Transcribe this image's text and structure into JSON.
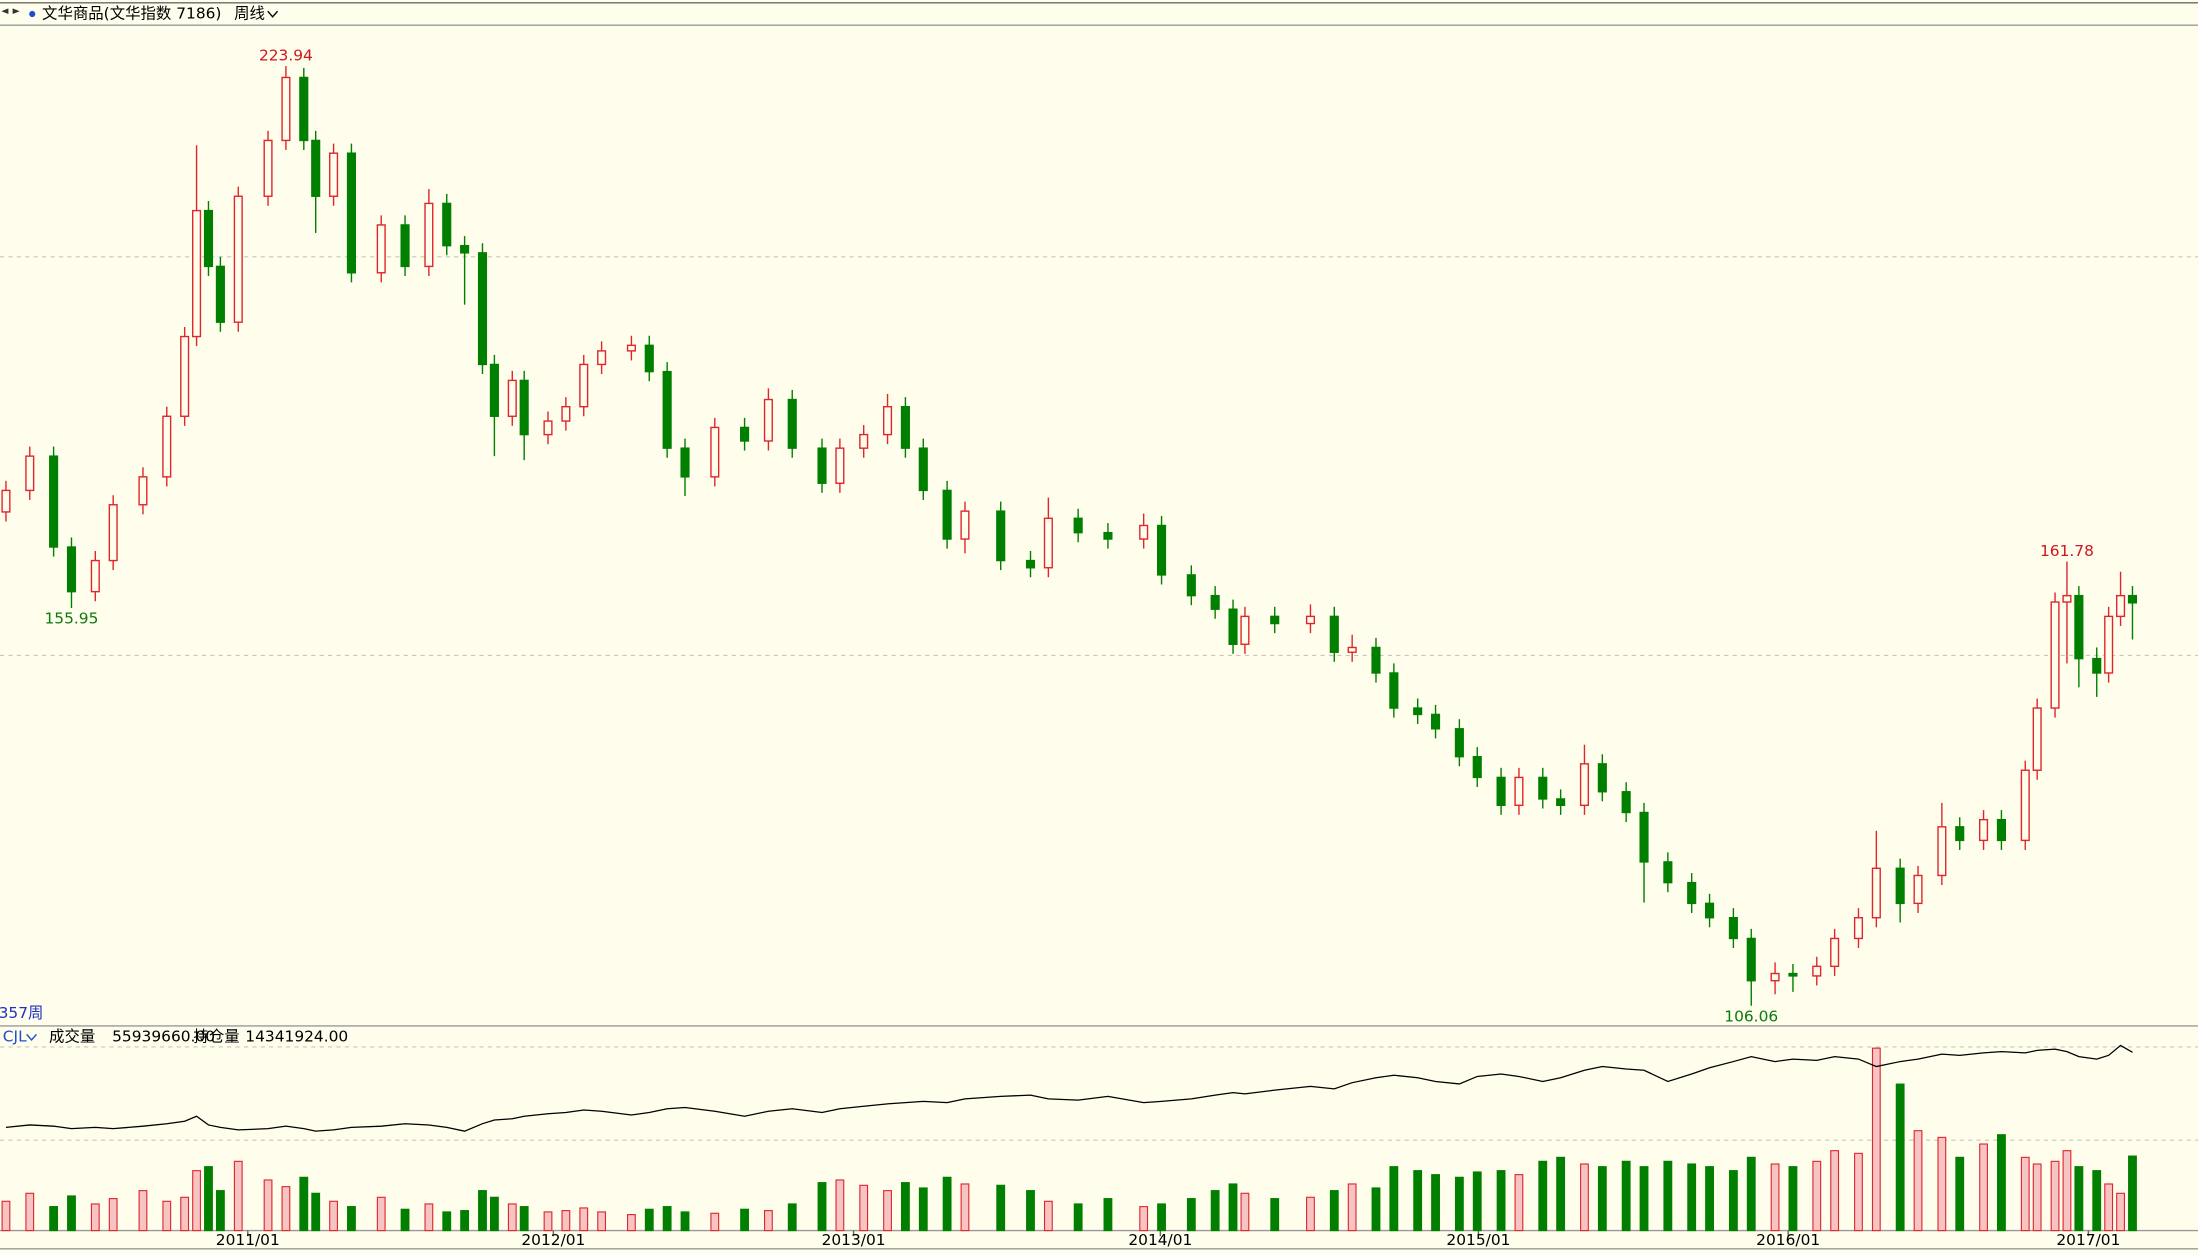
{
  "header": {
    "symbol": "文华商品(文华指数  7186)",
    "period": "周线",
    "bar_count": "357周"
  },
  "chart_data": [
    {
      "type": "candlestick",
      "x": [
        1,
        5,
        9,
        12,
        16,
        19,
        24,
        28,
        31,
        33,
        35,
        37,
        40,
        45,
        48,
        51,
        53,
        56,
        59,
        64,
        68,
        72,
        75,
        78,
        81,
        83,
        86,
        88,
        92,
        95,
        98,
        101,
        106,
        109,
        112,
        115,
        120,
        125,
        129,
        133,
        138,
        141,
        145,
        149,
        152,
        155,
        159,
        162,
        168,
        173,
        176,
        181,
        186,
        192,
        195,
        200,
        204,
        207,
        209,
        214,
        220,
        224,
        227,
        231,
        234,
        238,
        241,
        245,
        248,
        252,
        255,
        259,
        262,
        266,
        269,
        273,
        276,
        280,
        284,
        287,
        291,
        294,
        298,
        301,
        305,
        308,
        312,
        315,
        319,
        322,
        326,
        329,
        333,
        336,
        340,
        342,
        345,
        347,
        349,
        352,
        354,
        356,
        358
      ],
      "open": [
        168,
        170.7,
        175,
        163.6,
        158,
        161.9,
        168.9,
        172.4,
        180,
        190,
        205.8,
        198.8,
        191.8,
        207.6,
        214.6,
        222.5,
        214.6,
        207.6,
        213,
        198,
        204,
        198.8,
        206.7,
        201.4,
        200.5,
        186.5,
        180,
        184.5,
        177.7,
        179.4,
        181.2,
        186.5,
        188.2,
        188.9,
        185.6,
        176,
        172.4,
        178.6,
        176.9,
        182.1,
        176,
        171.6,
        176,
        177.7,
        181.2,
        176,
        170.7,
        164.6,
        168.1,
        161.9,
        161,
        167.2,
        165.4,
        164.6,
        166.3,
        160.1,
        157.5,
        155.8,
        151.4,
        154.9,
        154,
        154.9,
        150.4,
        151,
        147.8,
        143.4,
        142.6,
        140.8,
        137.3,
        134.7,
        131.2,
        134.7,
        132,
        131.2,
        136.4,
        132.9,
        130.3,
        124.1,
        121.5,
        118.9,
        117.1,
        114.5,
        109.2,
        110.1,
        109.8,
        111,
        114.5,
        117.1,
        123.3,
        118.9,
        122.4,
        128.5,
        126.8,
        129.4,
        126.8,
        135.6,
        143.4,
        156.7,
        157.5,
        149.6,
        147.8,
        154.9,
        157.5
      ],
      "high": [
        171.9,
        176.2,
        176.2,
        164.8,
        163.1,
        170.1,
        173.6,
        181.2,
        191.2,
        214,
        207,
        200,
        208.8,
        215.8,
        223.94,
        223.7,
        215.8,
        214.2,
        214.2,
        205.2,
        205.2,
        208.5,
        207.9,
        202.6,
        201.7,
        187.7,
        185.7,
        185.7,
        180.6,
        182.4,
        187.7,
        189.4,
        190.1,
        190.1,
        186.8,
        177.2,
        179.8,
        179.8,
        183.5,
        183.3,
        177.2,
        177.2,
        178.9,
        182.8,
        182.4,
        177.2,
        171.9,
        169.3,
        169.3,
        163.1,
        169.8,
        168.4,
        166.6,
        167.8,
        167.5,
        161.3,
        158.7,
        157,
        156.1,
        156.1,
        156.4,
        156.1,
        152.6,
        152.2,
        149,
        144.6,
        143.8,
        142,
        138.5,
        135.9,
        135.9,
        135.9,
        133.2,
        138.8,
        137.6,
        134.1,
        131.5,
        125.3,
        122.7,
        120.1,
        118.3,
        115.7,
        111.5,
        111.3,
        112.2,
        115.7,
        118.3,
        128,
        124.5,
        123.6,
        131.5,
        129.7,
        130.6,
        130.6,
        136.8,
        144.6,
        157.9,
        161.78,
        158.7,
        151,
        156.1,
        160.5,
        158.7
      ],
      "low": [
        166.8,
        169.5,
        162.4,
        155.95,
        156.8,
        160.7,
        167.7,
        171.2,
        178.8,
        188.8,
        197.6,
        190.6,
        190.6,
        206.4,
        213.4,
        213.4,
        203,
        206.4,
        196.8,
        196.8,
        197.6,
        197.6,
        200.2,
        194,
        185.3,
        175,
        178.8,
        174.5,
        176.5,
        178.2,
        180,
        185.3,
        187,
        184.4,
        174.8,
        170,
        171.2,
        175.7,
        175.7,
        174.8,
        170.4,
        170.4,
        174.8,
        176.5,
        174.8,
        169.5,
        163.4,
        162.8,
        160.7,
        159.8,
        159.8,
        164.2,
        163.4,
        163.4,
        158.9,
        156.3,
        154.6,
        150.2,
        150.2,
        152.8,
        152.8,
        149.2,
        149.2,
        146.6,
        142.2,
        141.4,
        139.6,
        136.1,
        133.5,
        130,
        130,
        130.8,
        130,
        130,
        131.7,
        129.1,
        119,
        120.3,
        117.7,
        115.9,
        113.3,
        106.06,
        107.5,
        107.8,
        108.6,
        109.8,
        113.3,
        115.9,
        116.5,
        117.7,
        121.2,
        125.6,
        125.6,
        125.6,
        125.6,
        134.4,
        142.2,
        149,
        146,
        144.8,
        146.6,
        153.7,
        152
      ],
      "close": [
        170.7,
        175,
        163.6,
        158,
        161.9,
        168.9,
        172.4,
        180,
        190,
        205.8,
        198.8,
        191.8,
        207.6,
        214.6,
        222.5,
        214.6,
        207.6,
        213,
        198,
        204,
        198.8,
        206.7,
        201.4,
        200.5,
        186.5,
        180,
        184.5,
        177.7,
        179.4,
        181.2,
        186.5,
        188.2,
        188.9,
        185.6,
        176,
        172.4,
        178.6,
        176.9,
        182.1,
        176,
        171.6,
        176,
        177.7,
        181.2,
        176,
        170.7,
        164.6,
        168.1,
        161.9,
        161,
        167.2,
        165.4,
        164.6,
        166.3,
        160.1,
        157.5,
        155.8,
        151.4,
        154.9,
        154,
        154.9,
        150.4,
        151,
        147.8,
        143.4,
        142.6,
        140.8,
        137.3,
        134.7,
        131.2,
        134.7,
        132,
        131.2,
        136.4,
        132.9,
        130.3,
        124.1,
        121.5,
        118.9,
        117.1,
        114.5,
        109.2,
        110.1,
        109.8,
        111,
        114.5,
        117.1,
        123.3,
        118.9,
        122.4,
        128.5,
        126.8,
        129.4,
        126.8,
        135.6,
        143.4,
        156.7,
        157.5,
        149.6,
        147.8,
        154.9,
        157.5,
        156.6
      ],
      "up_color": "#e0262d",
      "down_color": "#007f00",
      "xlim": [
        0,
        369
      ],
      "ylim": [
        103.7,
        228.7
      ],
      "yticks": [
        150,
        200
      ],
      "grid": true,
      "xticks": [
        {
          "value": 41.6,
          "label": "2011/01"
        },
        {
          "value": 92.9,
          "label": "2012/01"
        },
        {
          "value": 143.3,
          "label": "2013/01"
        },
        {
          "value": 194.8,
          "label": "2014/01"
        },
        {
          "value": 248.2,
          "label": "2015/01"
        },
        {
          "value": 300.2,
          "label": "2016/01"
        },
        {
          "value": 350.6,
          "label": "2017/01"
        }
      ],
      "extreme_labels": [
        223.94,
        155.95,
        106.06,
        161.78
      ]
    },
    {
      "type": "volume",
      "indicator": "CJL",
      "ylim": [
        0,
        140000000
      ],
      "yticks": [
        70000000,
        140000000
      ],
      "y2lim": [
        0,
        15000000
      ],
      "grid": true,
      "series": [
        {
          "name": "成交量",
          "readout": "55939660.00",
          "values": [
            22000000,
            28000000,
            18000000,
            26000000,
            20000000,
            24000000,
            30000000,
            22000000,
            25000000,
            45000000,
            48000000,
            30000000,
            52000000,
            38000000,
            33000000,
            40000000,
            28000000,
            22000000,
            18000000,
            25000000,
            16000000,
            20000000,
            14000000,
            15000000,
            30000000,
            25000000,
            20000000,
            18000000,
            14000000,
            15000000,
            17000000,
            14000000,
            12000000,
            16000000,
            18000000,
            14000000,
            13000000,
            16000000,
            15000000,
            20000000,
            36000000,
            38000000,
            34000000,
            30000000,
            36000000,
            32000000,
            40000000,
            35000000,
            34000000,
            30000000,
            22000000,
            20000000,
            24000000,
            18000000,
            20000000,
            24000000,
            30000000,
            35000000,
            28000000,
            24000000,
            25000000,
            30000000,
            35000000,
            32000000,
            48000000,
            45000000,
            42000000,
            40000000,
            44000000,
            45000000,
            42000000,
            52000000,
            55000000,
            50000000,
            48000000,
            52000000,
            48000000,
            52000000,
            50000000,
            48000000,
            45000000,
            55000000,
            50000000,
            48000000,
            52000000,
            60000000,
            58000000,
            137000000,
            110000000,
            75000000,
            70000000,
            55000000,
            65000000,
            72000000,
            55000000,
            50000000,
            52000000,
            60000000,
            48000000,
            45000000,
            35000000,
            28000000,
            55939660
          ]
        },
        {
          "name": "持仓量",
          "readout": "14341924.00",
          "axis": "y2",
          "color": "#000000",
          "values": [
            8300000,
            8500000,
            8400000,
            8200000,
            8300000,
            8200000,
            8400000,
            8600000,
            8800000,
            9200000,
            8500000,
            8300000,
            8100000,
            8200000,
            8400000,
            8200000,
            8000000,
            8100000,
            8300000,
            8400000,
            8600000,
            8500000,
            8300000,
            8000000,
            8600000,
            8900000,
            9000000,
            9200000,
            9400000,
            9500000,
            9700000,
            9600000,
            9300000,
            9500000,
            9800000,
            9900000,
            9600000,
            9200000,
            9600000,
            9800000,
            9500000,
            9800000,
            10000000,
            10200000,
            10300000,
            10400000,
            10300000,
            10600000,
            10800000,
            10900000,
            10600000,
            10500000,
            10800000,
            10300000,
            10400000,
            10600000,
            10900000,
            11100000,
            11000000,
            11300000,
            11600000,
            11400000,
            11900000,
            12300000,
            12500000,
            12300000,
            12000000,
            11800000,
            12400000,
            12600000,
            12400000,
            12000000,
            12300000,
            12900000,
            13200000,
            13000000,
            12900000,
            12000000,
            12600000,
            13100000,
            13600000,
            14000000,
            13600000,
            13800000,
            13700000,
            14000000,
            13800000,
            13200000,
            13600000,
            13800000,
            14200000,
            14100000,
            14300000,
            14400000,
            14300000,
            14500000,
            14600000,
            14400000,
            14000000,
            13800000,
            14100000,
            14900000,
            14341924
          ]
        }
      ]
    }
  ]
}
